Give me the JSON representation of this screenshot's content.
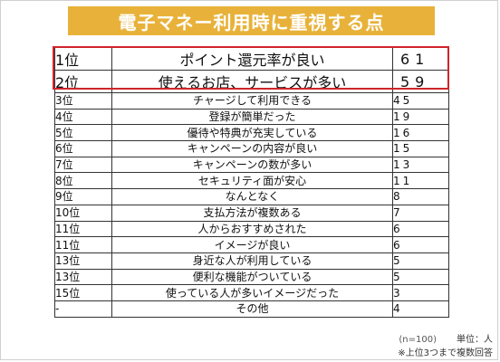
{
  "title": "電子マネー利用時に重視する点",
  "rows": [
    {
      "rank": "1位",
      "reason": "ポイント還元率が良い",
      "count": "61"
    },
    {
      "rank": "2位",
      "reason": "使えるお店、サービスが多い",
      "count": "59"
    },
    {
      "rank": "3位",
      "reason": "チャージして利用できる",
      "count": "45"
    },
    {
      "rank": "4位",
      "reason": "登録が簡単だった",
      "count": "19"
    },
    {
      "rank": "5位",
      "reason": "優待や特典が充実している",
      "count": "16"
    },
    {
      "rank": "6位",
      "reason": "キャンペーンの内容が良い",
      "count": "15"
    },
    {
      "rank": "7位",
      "reason": "キャンペーンの数が多い",
      "count": "13"
    },
    {
      "rank": "8位",
      "reason": "セキュリティ面が安心",
      "count": "11"
    },
    {
      "rank": "9位",
      "reason": "なんとなく",
      "count": "8"
    },
    {
      "rank": "10位",
      "reason": "支払方法が複数ある",
      "count": "7"
    },
    {
      "rank": "11位",
      "reason": "人からおすすめされた",
      "count": "6"
    },
    {
      "rank": "11位",
      "reason": "イメージが良い",
      "count": "6"
    },
    {
      "rank": "13位",
      "reason": "身近な人が利用している",
      "count": "5"
    },
    {
      "rank": "13位",
      "reason": "便利な機能がついている",
      "count": "5"
    },
    {
      "rank": "15位",
      "reason": "使っている人が多いイメージだった",
      "count": "3"
    },
    {
      "rank": "-",
      "reason": "その他",
      "count": "4"
    }
  ],
  "highlight_color": "#d0242b",
  "title_color": "#e8b23a",
  "footnote": {
    "sample": "(n=100)",
    "unit": "単位：人",
    "note": "※上位3つまで複数回答"
  }
}
